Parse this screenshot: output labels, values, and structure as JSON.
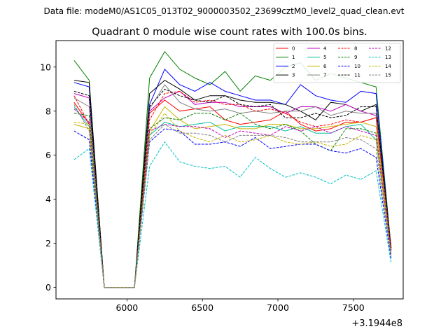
{
  "chart_data": {
    "type": "line",
    "suptitle": "Data file: modeM0/AS1C05_013T02_9000003502_23699cztM0_level2_quad_clean.evt",
    "title": "Quadrant 0 module wise count rates with 100.0s bins.",
    "xlabel": "",
    "ylabel": "",
    "x_offset_label": "+3.1944e8",
    "xlim": [
      5530,
      7830
    ],
    "ylim": [
      -0.52,
      11.2
    ],
    "xticks": [
      6000,
      6500,
      7000,
      7500
    ],
    "xtick_labels": [
      "6000",
      "6500",
      "7000",
      "7500"
    ],
    "yticks": [
      0,
      2,
      4,
      6,
      8,
      10
    ],
    "ytick_labels": [
      "0",
      "2",
      "4",
      "6",
      "8",
      "10"
    ],
    "grid": false,
    "legend_position": "top-right",
    "x": [
      5650,
      5750,
      5850,
      5950,
      6050,
      6150,
      6250,
      6350,
      6450,
      6550,
      6650,
      6750,
      6850,
      6950,
      7050,
      7150,
      7250,
      7350,
      7450,
      7550,
      7650,
      7750
    ],
    "series": [
      {
        "name": "0",
        "color": "#ff0000",
        "dash": "solid",
        "values": [
          8.4,
          7.4,
          0,
          0,
          0,
          7.9,
          8.5,
          8.0,
          8.1,
          8.2,
          7.6,
          7.4,
          7.5,
          7.6,
          8.0,
          7.4,
          7.1,
          7.2,
          7.5,
          7.5,
          7.7,
          1.9
        ]
      },
      {
        "name": "1",
        "color": "#008000",
        "dash": "solid",
        "values": [
          10.3,
          9.4,
          0,
          0,
          0,
          9.5,
          10.7,
          9.9,
          9.5,
          9.2,
          9.8,
          8.9,
          9.6,
          9.4,
          10.0,
          10.2,
          9.4,
          9.7,
          9.5,
          9.3,
          9.1,
          1.8
        ]
      },
      {
        "name": "2",
        "color": "#0000ff",
        "dash": "solid",
        "values": [
          9.3,
          9.1,
          0,
          0,
          0,
          8.3,
          9.9,
          9.2,
          8.9,
          9.3,
          8.9,
          8.7,
          8.5,
          8.5,
          8.3,
          9.2,
          8.7,
          8.5,
          8.4,
          8.9,
          8.8,
          1.7
        ]
      },
      {
        "name": "3",
        "color": "#000000",
        "dash": "solid",
        "values": [
          9.4,
          9.3,
          0,
          0,
          0,
          8.8,
          9.4,
          9.0,
          8.5,
          8.7,
          8.7,
          8.5,
          8.4,
          8.4,
          8.3,
          8.0,
          7.6,
          8.4,
          8.3,
          8.0,
          8.3,
          1.8
        ]
      },
      {
        "name": "4",
        "color": "#c000c0",
        "dash": "solid",
        "values": [
          8.8,
          8.6,
          0,
          0,
          0,
          8.0,
          8.6,
          8.9,
          8.3,
          8.4,
          8.4,
          8.2,
          8.2,
          8.2,
          7.9,
          8.2,
          8.2,
          8.0,
          8.3,
          8.0,
          7.8,
          1.7
        ]
      },
      {
        "name": "5",
        "color": "#00c0a0",
        "dash": "solid",
        "values": [
          8.2,
          7.3,
          0,
          0,
          0,
          6.9,
          7.5,
          7.3,
          7.4,
          7.5,
          7.1,
          7.3,
          7.3,
          7.3,
          7.1,
          7.3,
          7.0,
          7.0,
          7.3,
          7.4,
          6.7,
          1.6
        ]
      },
      {
        "name": "6",
        "color": "#c8b400",
        "dash": "solid",
        "values": [
          7.4,
          7.2,
          0,
          0,
          0,
          7.1,
          8.2,
          7.6,
          7.2,
          7.3,
          7.4,
          7.2,
          7.2,
          7.4,
          7.4,
          7.2,
          7.2,
          7.3,
          7.4,
          7.5,
          7.3,
          1.7
        ]
      },
      {
        "name": "7",
        "color": "#808080",
        "dash": "solid",
        "values": [
          8.6,
          8.2,
          0,
          0,
          0,
          8.1,
          9.2,
          8.4,
          8.1,
          8.0,
          8.1,
          7.9,
          8.0,
          7.9,
          8.0,
          8.0,
          8.2,
          7.8,
          8.0,
          7.9,
          7.9,
          1.8
        ]
      },
      {
        "name": "8",
        "color": "#ff0000",
        "dash": "dashed",
        "values": [
          8.7,
          7.4,
          0,
          0,
          0,
          7.6,
          8.8,
          8.9,
          8.4,
          8.5,
          8.3,
          8.3,
          8.0,
          8.1,
          7.9,
          7.5,
          7.3,
          7.4,
          7.6,
          7.5,
          7.7,
          1.8
        ]
      },
      {
        "name": "9",
        "color": "#008000",
        "dash": "dashed",
        "values": [
          7.9,
          7.8,
          0,
          0,
          0,
          7.2,
          7.7,
          7.6,
          7.9,
          7.9,
          7.6,
          7.9,
          7.4,
          7.2,
          7.4,
          7.1,
          6.5,
          6.2,
          7.2,
          7.2,
          7.0,
          1.5
        ]
      },
      {
        "name": "10",
        "color": "#0000ff",
        "dash": "dashed",
        "values": [
          7.1,
          6.7,
          0,
          0,
          0,
          6.6,
          7.2,
          7.1,
          6.5,
          6.5,
          6.6,
          6.4,
          6.8,
          6.3,
          6.4,
          6.5,
          6.5,
          6.2,
          6.1,
          6.3,
          5.9,
          1.3
        ]
      },
      {
        "name": "11",
        "color": "#000000",
        "dash": "dashed",
        "values": [
          8.9,
          8.7,
          0,
          0,
          0,
          8.2,
          9.0,
          8.7,
          8.5,
          8.4,
          8.7,
          8.3,
          8.2,
          8.3,
          7.7,
          7.7,
          7.9,
          7.7,
          7.8,
          8.2,
          8.2,
          1.7
        ]
      },
      {
        "name": "12",
        "color": "#c000c0",
        "dash": "dashed",
        "values": [
          8.1,
          7.5,
          0,
          0,
          0,
          7.1,
          7.4,
          7.3,
          7.3,
          7.2,
          6.8,
          7.1,
          7.0,
          6.9,
          7.3,
          7.1,
          7.3,
          7.0,
          7.3,
          7.1,
          6.9,
          1.6
        ]
      },
      {
        "name": "13",
        "color": "#00c0c8",
        "dash": "dashed",
        "values": [
          5.8,
          6.3,
          0,
          0,
          0,
          5.5,
          6.6,
          5.7,
          5.5,
          5.4,
          5.5,
          5.0,
          5.9,
          5.4,
          5.0,
          5.2,
          5.0,
          4.7,
          5.1,
          4.9,
          5.3,
          1.1
        ]
      },
      {
        "name": "14",
        "color": "#c8b400",
        "dash": "dashed",
        "values": [
          7.5,
          7.4,
          0,
          0,
          0,
          6.9,
          7.9,
          7.1,
          6.8,
          6.6,
          6.9,
          6.6,
          6.7,
          6.9,
          6.6,
          6.5,
          6.6,
          6.4,
          6.5,
          6.9,
          6.7,
          1.5
        ]
      },
      {
        "name": "15",
        "color": "#808080",
        "dash": "dashed",
        "values": [
          8.3,
          7.1,
          0,
          0,
          0,
          6.7,
          7.4,
          7.0,
          7.0,
          6.9,
          6.6,
          6.9,
          6.9,
          6.9,
          6.8,
          6.6,
          6.6,
          6.6,
          6.8,
          6.7,
          6.3,
          1.4
        ]
      }
    ]
  }
}
